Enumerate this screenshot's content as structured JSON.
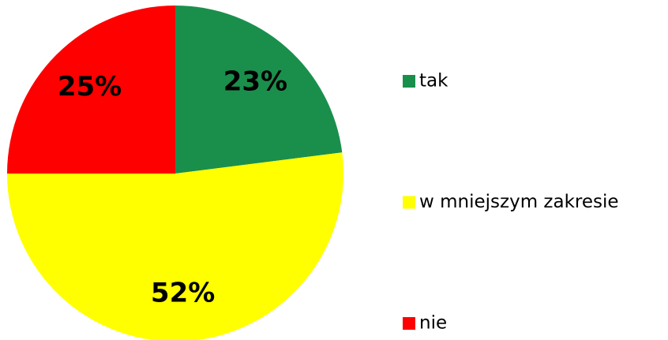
{
  "chart_data": {
    "type": "pie",
    "categories": [
      "tak",
      "w mniejszym zakresie",
      "nie"
    ],
    "values": [
      23,
      52,
      25
    ],
    "value_labels": [
      "23%",
      "52%",
      "25%"
    ],
    "colors": [
      "#1a8f4c",
      "#ffff00",
      "#ff0000"
    ],
    "legend": "right"
  }
}
